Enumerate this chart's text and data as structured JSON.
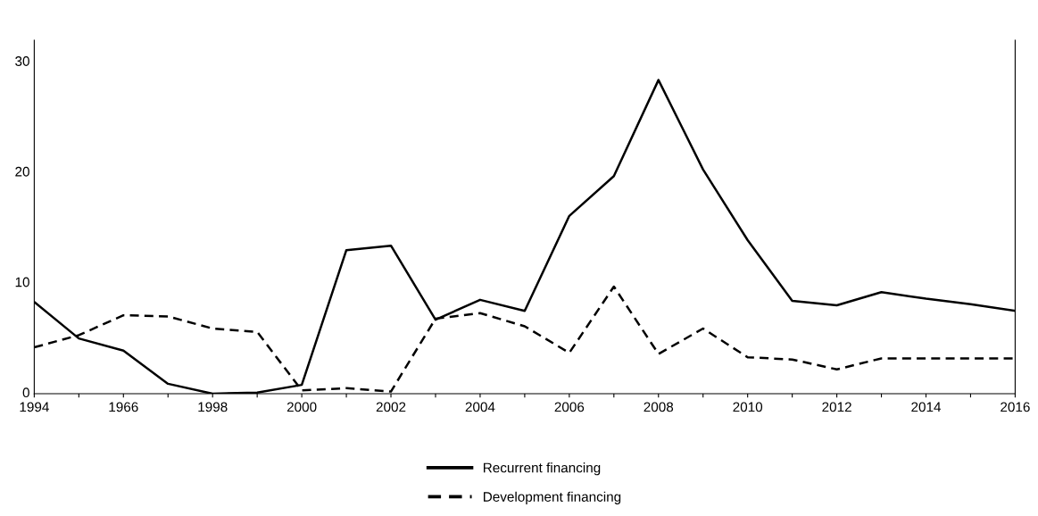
{
  "chart_data": {
    "type": "line",
    "categories": [
      "1994",
      null,
      "1966",
      null,
      "1998",
      null,
      "2000",
      null,
      "2002",
      null,
      "2004",
      null,
      "2006",
      null,
      "2008",
      null,
      "2010",
      null,
      "2012",
      null,
      "2014",
      null,
      "2016"
    ],
    "series": [
      {
        "name": "Recurrent financing",
        "color": "#000000",
        "line_style": "solid",
        "values": [
          8.3,
          5.0,
          3.9,
          0.9,
          0.0,
          0.1,
          0.8,
          13.0,
          13.4,
          6.7,
          8.5,
          7.5,
          16.1,
          19.7,
          28.4,
          20.3,
          13.9,
          8.4,
          8.0,
          9.2,
          8.6,
          8.1,
          7.5
        ]
      },
      {
        "name": "Development financing",
        "color": "#000000",
        "line_style": "dashed",
        "values": [
          4.2,
          5.3,
          7.1,
          7.0,
          5.9,
          5.6,
          0.3,
          0.5,
          0.2,
          6.8,
          7.3,
          6.1,
          3.7,
          9.7,
          3.6,
          5.9,
          3.3,
          3.1,
          2.2,
          3.2,
          3.2,
          3.2,
          3.2
        ]
      }
    ],
    "ylim": [
      0,
      32
    ],
    "yticks": [
      0,
      10,
      20,
      30
    ],
    "grid": false,
    "legend": "bottom",
    "marker": "none"
  }
}
